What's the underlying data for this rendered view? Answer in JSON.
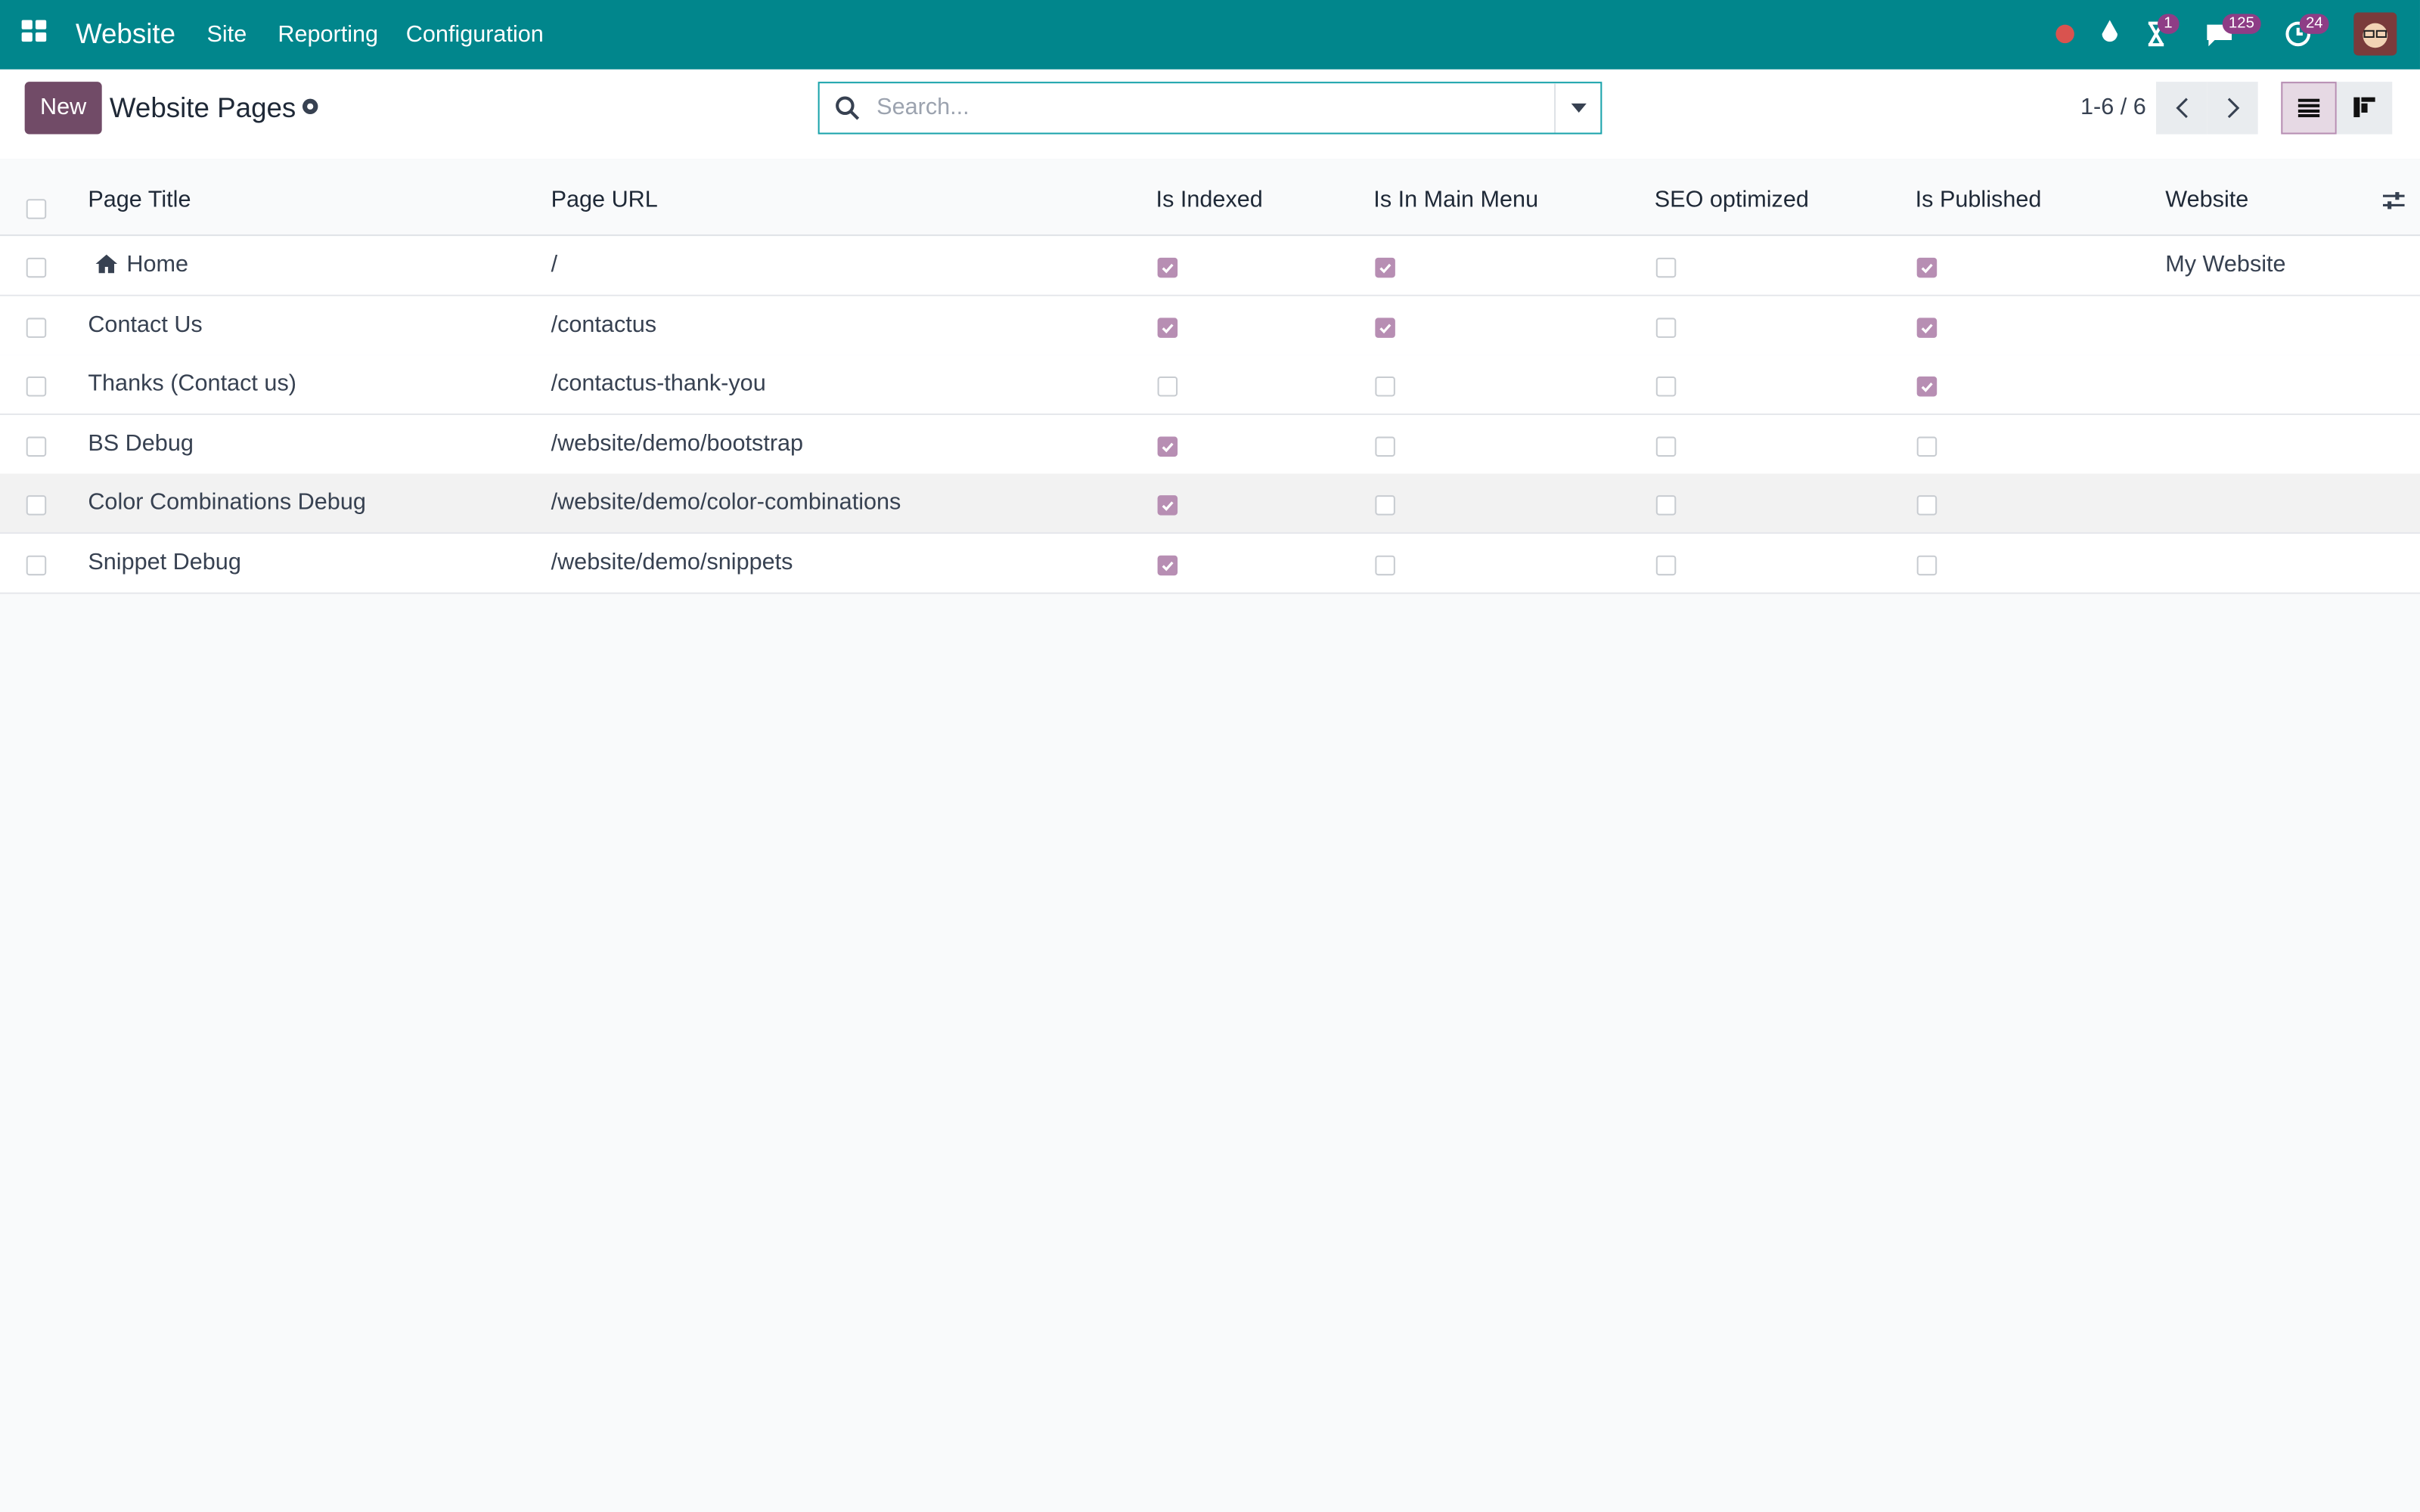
{
  "navbar": {
    "app": "Website",
    "menu": [
      "Site",
      "Reporting",
      "Configuration"
    ],
    "badges": [
      1,
      125,
      24
    ]
  },
  "control_panel": {
    "new_button": "New",
    "title": "Website Pages",
    "search_placeholder": "Search...",
    "pager": "1-6 / 6"
  },
  "table": {
    "columns": [
      "Page Title",
      "Page URL",
      "Is Indexed",
      "Is In Main Menu",
      "SEO optimized",
      "Is Published",
      "Website"
    ],
    "rows": [
      {
        "title": "Home",
        "url": "/",
        "is_indexed": true,
        "is_in_main_menu": true,
        "seo_optimized": false,
        "is_published": true,
        "website": "My Website"
      },
      {
        "title": "Contact Us",
        "url": "/contactus",
        "is_indexed": true,
        "is_in_main_menu": true,
        "seo_optimized": false,
        "is_published": true,
        "website": null
      },
      {
        "title": "Thanks (Contact us)",
        "url": "/contactus-thank-you",
        "is_indexed": false,
        "is_in_main_menu": false,
        "seo_optimized": false,
        "is_published": true,
        "website": null
      },
      {
        "title": "BS Debug",
        "url": "/website/demo/bootstrap",
        "is_indexed": true,
        "is_in_main_menu": false,
        "seo_optimized": false,
        "is_published": false,
        "website": null
      },
      {
        "title": "Color Combinations Debug",
        "url": "/website/demo/color-combinations",
        "is_indexed": true,
        "is_in_main_menu": false,
        "seo_optimized": false,
        "is_published": false,
        "website": null
      },
      {
        "title": "Snippet Debug",
        "url": "/website/demo/snippets",
        "is_indexed": true,
        "is_in_main_menu": false,
        "seo_optimized": false,
        "is_published": false,
        "website": null
      }
    ]
  }
}
